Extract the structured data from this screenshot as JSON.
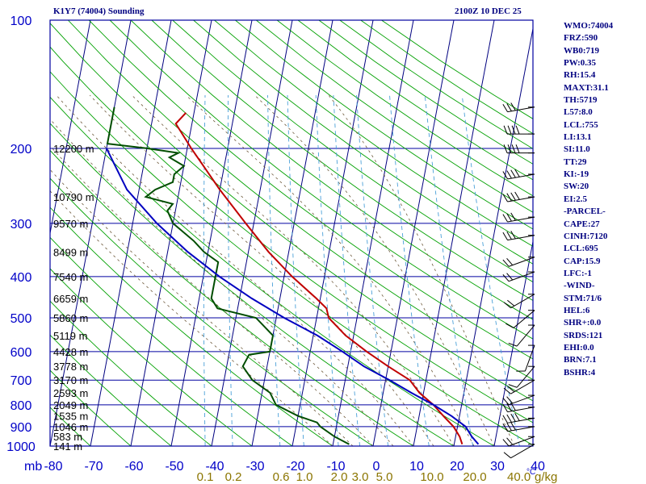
{
  "header": {
    "title": "K1Y7 (74004) Sounding",
    "time": "2100Z 10 DEC 25"
  },
  "indices": [
    "WMO:74004",
    "FRZ:590",
    "WB0:719",
    "PW:0.35",
    "RH:15.4",
    "MAXT:31.1",
    "TH:5719",
    "L57:8.0",
    "LCL:755",
    "LI:13.1",
    "SI:11.0",
    "TT:29",
    "KI:-19",
    "SW:20",
    "EI:2.5",
    "-PARCEL-",
    "CAPE:27",
    "CINH:7120",
    "LCL:695",
    "CAP:15.9",
    "LFC:-1",
    "-WIND-",
    "STM:71/6",
    "HEL:6",
    "SHR+:0.0",
    "SRDS:121",
    "EHI:0.0",
    "BRN:7.1",
    "BSHR:4"
  ],
  "colors": {
    "frame": "#0000a0",
    "isotherm": "#000080",
    "isobar": "#0000a0",
    "dry_adiabat": "#00a000",
    "moist_adiabat": "#6e5a3c",
    "mixing_ratio": "#4aa0d8",
    "temperature": "#c00000",
    "dewpoint": "#004d00",
    "parcel": "#0000c0",
    "axis_text": "#0000c8",
    "height_text": "#000000",
    "mixing_text": "#8b7500"
  },
  "chart_data": {
    "type": "skew-t",
    "title": "K1Y7 (74004) Sounding",
    "xlabel": "°C",
    "ylabel": "mb",
    "x_range": [
      -80,
      40
    ],
    "p_range": [
      100,
      1000
    ],
    "pressure_levels": [
      100,
      200,
      300,
      400,
      500,
      600,
      700,
      800,
      900,
      1000
    ],
    "temperature_ticks": [
      -80,
      -70,
      -60,
      -50,
      -40,
      -30,
      -20,
      -10,
      0,
      10,
      20,
      30,
      40
    ],
    "mixing_ratio_labels": [
      {
        "label": "0.1",
        "w": 0.1
      },
      {
        "label": "0.2",
        "w": 0.2
      },
      {
        "label": "0.6",
        "w": 0.6
      },
      {
        "label": "1.0",
        "w": 1.0
      },
      {
        "label": "2.0",
        "w": 2.0
      },
      {
        "label": "3.0",
        "w": 3.0
      },
      {
        "label": "5.0",
        "w": 5.0
      },
      {
        "label": "10.0",
        "w": 10.0
      },
      {
        "label": "20.0",
        "w": 20.0
      },
      {
        "label": "40.0",
        "w": 40.0
      }
    ],
    "mixing_unit": "g/kg",
    "height_labels": [
      {
        "p": 200,
        "label": "12200 m"
      },
      {
        "p": 260,
        "label": "10790 m"
      },
      {
        "p": 300,
        "label": "9570 m"
      },
      {
        "p": 350,
        "label": "8499 m"
      },
      {
        "p": 400,
        "label": "7540 m"
      },
      {
        "p": 450,
        "label": "6659 m"
      },
      {
        "p": 500,
        "label": "5860 m"
      },
      {
        "p": 550,
        "label": "5119 m"
      },
      {
        "p": 600,
        "label": "4428 m"
      },
      {
        "p": 650,
        "label": "3778 m"
      },
      {
        "p": 700,
        "label": "3170 m"
      },
      {
        "p": 750,
        "label": "2593 m"
      },
      {
        "p": 800,
        "label": "2049 m"
      },
      {
        "p": 850,
        "label": "1535 m"
      },
      {
        "p": 900,
        "label": "1046 m"
      },
      {
        "p": 950,
        "label": "583 m"
      },
      {
        "p": 1000,
        "label": "141 m"
      }
    ],
    "series": [
      {
        "name": "temperature",
        "points": [
          [
            165,
            -62
          ],
          [
            175,
            -64
          ],
          [
            200,
            -59
          ],
          [
            250,
            -50
          ],
          [
            300,
            -42
          ],
          [
            350,
            -35
          ],
          [
            400,
            -28
          ],
          [
            450,
            -21
          ],
          [
            475,
            -18
          ],
          [
            500,
            -17
          ],
          [
            550,
            -12
          ],
          [
            600,
            -6
          ],
          [
            650,
            0
          ],
          [
            700,
            6
          ],
          [
            750,
            9
          ],
          [
            800,
            13
          ],
          [
            850,
            16
          ],
          [
            900,
            19
          ],
          [
            950,
            21
          ],
          [
            990,
            22
          ]
        ]
      },
      {
        "name": "dewpoint",
        "points": [
          [
            160,
            -80
          ],
          [
            175,
            -80
          ],
          [
            195,
            -80
          ],
          [
            200,
            -70
          ],
          [
            205,
            -62
          ],
          [
            210,
            -64
          ],
          [
            220,
            -60
          ],
          [
            230,
            -62
          ],
          [
            240,
            -62
          ],
          [
            250,
            -66
          ],
          [
            260,
            -68
          ],
          [
            270,
            -61
          ],
          [
            280,
            -62
          ],
          [
            300,
            -60
          ],
          [
            330,
            -54
          ],
          [
            350,
            -51
          ],
          [
            370,
            -47
          ],
          [
            400,
            -47
          ],
          [
            450,
            -47
          ],
          [
            475,
            -45
          ],
          [
            500,
            -35
          ],
          [
            550,
            -30
          ],
          [
            600,
            -30
          ],
          [
            610,
            -35
          ],
          [
            650,
            -36
          ],
          [
            700,
            -33
          ],
          [
            750,
            -28
          ],
          [
            800,
            -26
          ],
          [
            850,
            -20
          ],
          [
            880,
            -15
          ],
          [
            900,
            -14
          ],
          [
            950,
            -10
          ],
          [
            990,
            -6
          ]
        ]
      },
      {
        "name": "parcel",
        "points": [
          [
            200,
            -80
          ],
          [
            250,
            -73
          ],
          [
            300,
            -64
          ],
          [
            350,
            -55
          ],
          [
            400,
            -46
          ],
          [
            450,
            -37
          ],
          [
            500,
            -28
          ],
          [
            550,
            -19
          ],
          [
            600,
            -12
          ],
          [
            650,
            -6
          ],
          [
            700,
            1
          ],
          [
            750,
            7
          ],
          [
            800,
            13
          ],
          [
            850,
            18
          ],
          [
            900,
            22
          ],
          [
            950,
            24
          ],
          [
            990,
            26
          ]
        ]
      }
    ],
    "wind_barbs": [
      {
        "p": 160,
        "dir": 260,
        "spd": 30
      },
      {
        "p": 185,
        "dir": 270,
        "spd": 40
      },
      {
        "p": 205,
        "dir": 270,
        "spd": 45
      },
      {
        "p": 230,
        "dir": 260,
        "spd": 35
      },
      {
        "p": 260,
        "dir": 260,
        "spd": 35
      },
      {
        "p": 290,
        "dir": 260,
        "spd": 30
      },
      {
        "p": 320,
        "dir": 260,
        "spd": 25
      },
      {
        "p": 360,
        "dir": 250,
        "spd": 20
      },
      {
        "p": 390,
        "dir": 250,
        "spd": 20
      },
      {
        "p": 440,
        "dir": 240,
        "spd": 15
      },
      {
        "p": 480,
        "dir": 230,
        "spd": 10
      },
      {
        "p": 520,
        "dir": 220,
        "spd": 10
      },
      {
        "p": 580,
        "dir": 200,
        "spd": 10
      },
      {
        "p": 650,
        "dir": 220,
        "spd": 10
      },
      {
        "p": 700,
        "dir": 240,
        "spd": 15
      },
      {
        "p": 760,
        "dir": 250,
        "spd": 20
      },
      {
        "p": 810,
        "dir": 260,
        "spd": 30
      },
      {
        "p": 860,
        "dir": 260,
        "spd": 35
      },
      {
        "p": 900,
        "dir": 260,
        "spd": 30
      },
      {
        "p": 950,
        "dir": 250,
        "spd": 20
      },
      {
        "p": 990,
        "dir": 240,
        "spd": 10
      }
    ]
  }
}
